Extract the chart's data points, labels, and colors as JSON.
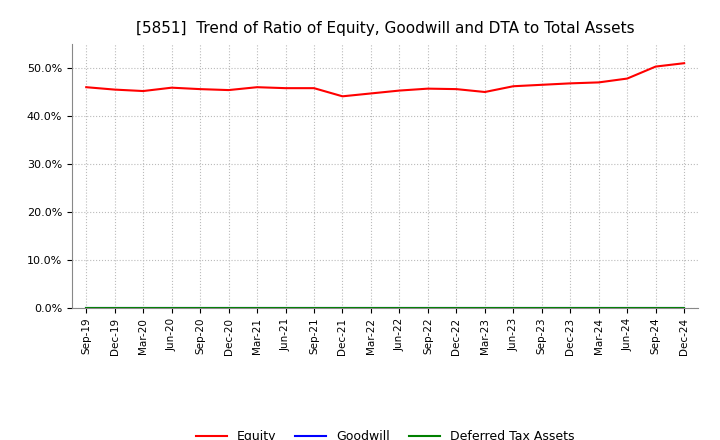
{
  "title": "[5851]  Trend of Ratio of Equity, Goodwill and DTA to Total Assets",
  "x_labels": [
    "Sep-19",
    "Dec-19",
    "Mar-20",
    "Jun-20",
    "Sep-20",
    "Dec-20",
    "Mar-21",
    "Jun-21",
    "Sep-21",
    "Dec-21",
    "Mar-22",
    "Jun-22",
    "Sep-22",
    "Dec-22",
    "Mar-23",
    "Jun-23",
    "Sep-23",
    "Dec-23",
    "Mar-24",
    "Jun-24",
    "Sep-24",
    "Dec-24"
  ],
  "equity": [
    0.46,
    0.455,
    0.452,
    0.459,
    0.456,
    0.454,
    0.46,
    0.458,
    0.458,
    0.441,
    0.447,
    0.453,
    0.457,
    0.456,
    0.45,
    0.462,
    0.465,
    0.468,
    0.47,
    0.478,
    0.503,
    0.51
  ],
  "goodwill": [
    0.0,
    0.0,
    0.0,
    0.0,
    0.0,
    0.0,
    0.0,
    0.0,
    0.0,
    0.0,
    0.0,
    0.0,
    0.0,
    0.0,
    0.0,
    0.0,
    0.0,
    0.0,
    0.0,
    0.0,
    0.0,
    0.0
  ],
  "dta": [
    0.0,
    0.0,
    0.0,
    0.0,
    0.0,
    0.0,
    0.0,
    0.0,
    0.0,
    0.0,
    0.0,
    0.0,
    0.0,
    0.0,
    0.0,
    0.0,
    0.0,
    0.0,
    0.0,
    0.0,
    0.0,
    0.0
  ],
  "equity_color": "#FF0000",
  "goodwill_color": "#0000FF",
  "dta_color": "#008000",
  "ylim": [
    0.0,
    0.55
  ],
  "yticks": [
    0.0,
    0.1,
    0.2,
    0.3,
    0.4,
    0.5
  ],
  "background_color": "#FFFFFF",
  "grid_color": "#BBBBBB",
  "title_fontsize": 11,
  "legend_labels": [
    "Equity",
    "Goodwill",
    "Deferred Tax Assets"
  ]
}
